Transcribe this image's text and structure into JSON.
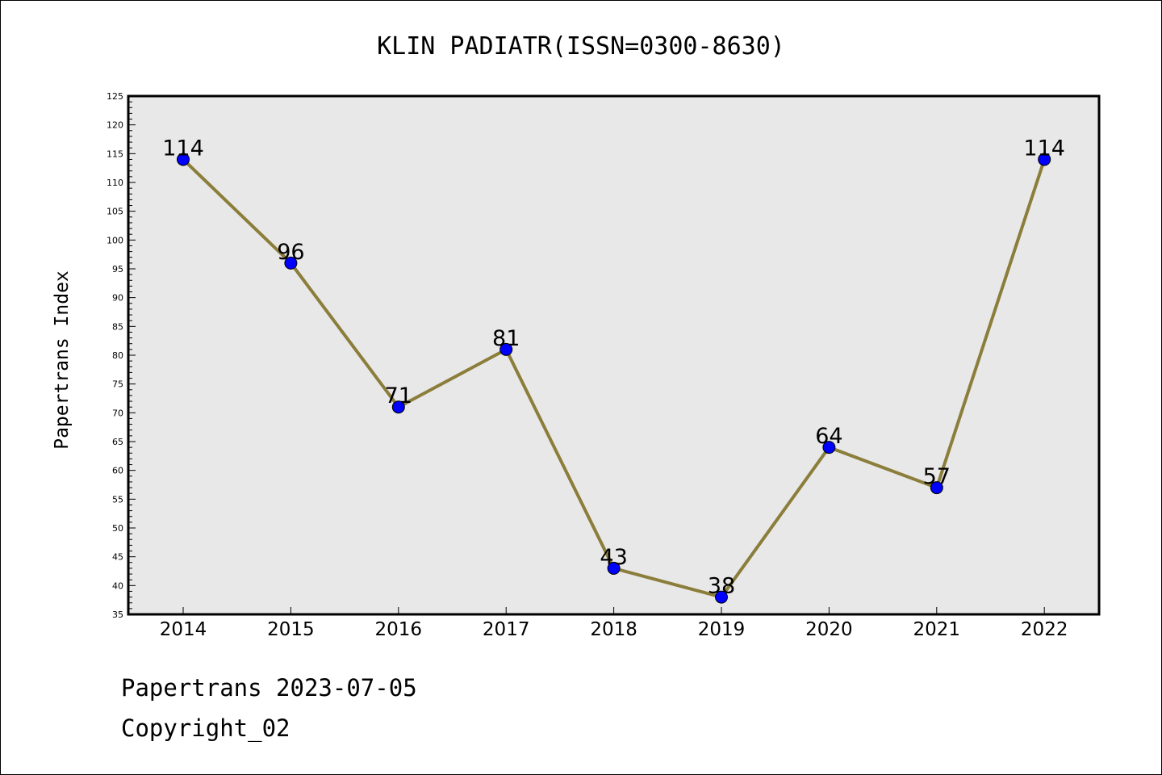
{
  "chart_data": {
    "type": "line",
    "title": "KLIN PADIATR(ISSN=0300-8630)",
    "xlabel": "",
    "ylabel": "Papertrans Index",
    "categories": [
      "2014",
      "2015",
      "2016",
      "2017",
      "2018",
      "2019",
      "2020",
      "2021",
      "2022"
    ],
    "series": [
      {
        "values": [
          114,
          96,
          71,
          81,
          43,
          38,
          64,
          57,
          114
        ]
      }
    ],
    "data_labels": [
      "114",
      "96",
      "71",
      "81",
      "43",
      "38",
      "64",
      "57",
      "114"
    ],
    "ylim": [
      35,
      125
    ],
    "y_ticks": [
      "35",
      "40",
      "45",
      "50",
      "55",
      "60",
      "65",
      "70",
      "75",
      "80",
      "85",
      "90",
      "95",
      "100",
      "105",
      "110",
      "115",
      "120",
      "125"
    ],
    "y_minor_step": 1,
    "grid": false,
    "legend": "none",
    "colors": {
      "line": "#8b7d3a",
      "marker": "#0000ff",
      "plot_background": "#e8e8e8",
      "frame": "#000000"
    }
  },
  "footer": {
    "line1": "Papertrans 2023-07-05",
    "line2": "Copyright_02"
  }
}
